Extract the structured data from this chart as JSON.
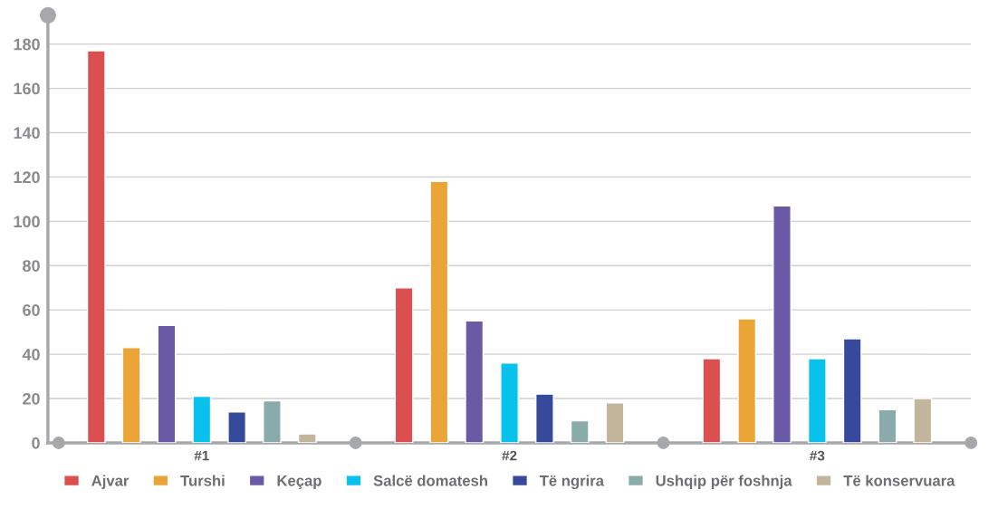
{
  "chart_data": {
    "type": "bar",
    "categories": [
      "#1",
      "#2",
      "#3"
    ],
    "series": [
      {
        "name": "Ajvar",
        "color": "#db4f4f",
        "values": [
          177,
          70,
          38
        ]
      },
      {
        "name": "Turshi",
        "color": "#eaa536",
        "values": [
          43,
          118,
          56
        ]
      },
      {
        "name": "Keçap",
        "color": "#6a59a5",
        "values": [
          53,
          55,
          107
        ]
      },
      {
        "name": "Salcë domatesh",
        "color": "#08c1ed",
        "values": [
          21,
          36,
          38
        ]
      },
      {
        "name": "Të ngrira",
        "color": "#36499b",
        "values": [
          14,
          22,
          47
        ]
      },
      {
        "name": "Ushqip për foshnja",
        "color": "#8aabac",
        "values": [
          19,
          10,
          15
        ]
      },
      {
        "name": "Të konservuara",
        "color": "#c2b59b",
        "values": [
          4,
          18,
          20
        ]
      }
    ],
    "ylim": [
      0,
      193
    ],
    "yticks": [
      0,
      20,
      40,
      60,
      80,
      100,
      120,
      140,
      160,
      180
    ],
    "grid": "y",
    "legend": "bottom"
  }
}
